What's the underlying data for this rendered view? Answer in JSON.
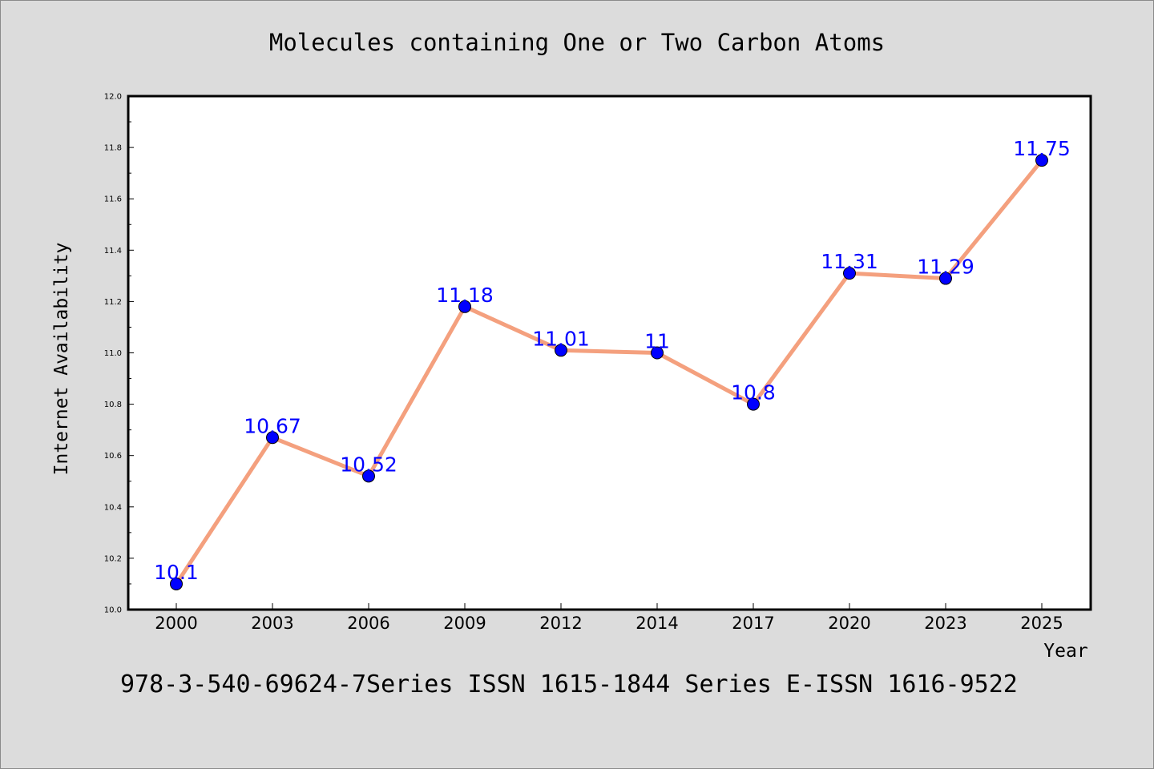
{
  "chart_data": {
    "type": "line",
    "title": "Molecules containing One or Two Carbon Atoms",
    "xlabel": "Year",
    "ylabel": "Internet Availability",
    "categories": [
      "2000",
      "2003",
      "2006",
      "2009",
      "2012",
      "2014",
      "2017",
      "2020",
      "2023",
      "2025"
    ],
    "series": [
      {
        "values": [
          10.1,
          10.67,
          10.52,
          11.18,
          11.01,
          11,
          10.8,
          11.31,
          11.29,
          11.75
        ],
        "data_labels": [
          "10.1",
          "10.67",
          "10.52",
          "11.18",
          "11.01",
          "11",
          "10.8",
          "11.31",
          "11.29",
          "11.75"
        ]
      }
    ],
    "ylim": [
      10.0,
      12.0
    ],
    "yticks": [
      "10.0",
      "10.2",
      "10.4",
      "10.6",
      "10.8",
      "11.0",
      "11.2",
      "11.4",
      "11.6",
      "11.8",
      "12.0"
    ],
    "grid": false,
    "colors": {
      "line": "#f4a07e",
      "marker": "#0000ff",
      "label": "#0000ff",
      "background": "#dcdcdc",
      "plot_area": "#ffffff"
    }
  },
  "footer_text": "978-3-540-69624-7Series ISSN 1615-1844 Series E-ISSN 1616-9522"
}
